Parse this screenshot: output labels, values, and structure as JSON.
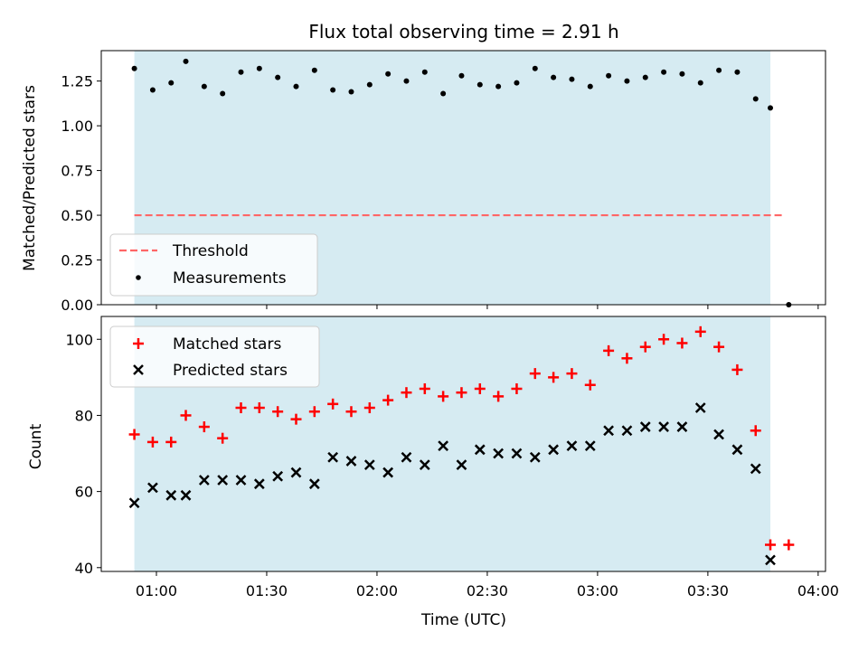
{
  "colors": {
    "shade": "#add8e6",
    "threshold": "#ff6666",
    "matched": "#ff0000",
    "predicted": "#000000",
    "measure": "#000000"
  },
  "chart_data": [
    {
      "type": "scatter",
      "title": "Flux total observing time = 2.91 h",
      "ylabel": "Matched/Predicted stars",
      "xlabel": "",
      "xlim": [
        "00:45",
        "04:02"
      ],
      "ylim": [
        0,
        1.42
      ],
      "y_ticks": [
        "0.00",
        "0.25",
        "0.50",
        "0.75",
        "1.00",
        "1.25"
      ],
      "shaded_span": [
        "00:54",
        "03:47"
      ],
      "threshold": {
        "name": "Threshold",
        "value": 0.5,
        "x_range": [
          "00:54",
          "03:51"
        ]
      },
      "legend": {
        "position": "lower-left",
        "entries": [
          "Threshold",
          "Measurements"
        ]
      },
      "series": [
        {
          "name": "Measurements",
          "marker": "dot",
          "x": [
            "00:54",
            "00:59",
            "01:04",
            "01:08",
            "01:13",
            "01:18",
            "01:23",
            "01:28",
            "01:33",
            "01:38",
            "01:43",
            "01:48",
            "01:53",
            "01:58",
            "02:03",
            "02:08",
            "02:13",
            "02:18",
            "02:23",
            "02:28",
            "02:33",
            "02:38",
            "02:43",
            "02:48",
            "02:53",
            "02:58",
            "03:03",
            "03:08",
            "03:13",
            "03:18",
            "03:23",
            "03:28",
            "03:33",
            "03:38",
            "03:43",
            "03:47",
            "03:52"
          ],
          "values": [
            1.32,
            1.2,
            1.24,
            1.36,
            1.22,
            1.18,
            1.3,
            1.32,
            1.27,
            1.22,
            1.31,
            1.2,
            1.19,
            1.23,
            1.29,
            1.25,
            1.3,
            1.18,
            1.28,
            1.23,
            1.22,
            1.24,
            1.32,
            1.27,
            1.26,
            1.22,
            1.28,
            1.25,
            1.27,
            1.3,
            1.29,
            1.24,
            1.31,
            1.3,
            1.15,
            1.1,
            0.0
          ]
        }
      ]
    },
    {
      "type": "scatter",
      "title": "",
      "ylabel": "Count",
      "xlabel": "Time (UTC)",
      "xlim": [
        "00:45",
        "04:02"
      ],
      "ylim": [
        39,
        106
      ],
      "y_ticks": [
        "40",
        "60",
        "80",
        "100"
      ],
      "x_ticks": [
        "01:00",
        "01:30",
        "02:00",
        "02:30",
        "03:00",
        "03:30",
        "04:00"
      ],
      "shaded_span": [
        "00:54",
        "03:47"
      ],
      "legend": {
        "position": "upper-left",
        "entries": [
          "Matched stars",
          "Predicted stars"
        ]
      },
      "series": [
        {
          "name": "Matched stars",
          "marker": "plus",
          "x": [
            "00:54",
            "00:59",
            "01:04",
            "01:08",
            "01:13",
            "01:18",
            "01:23",
            "01:28",
            "01:33",
            "01:38",
            "01:43",
            "01:48",
            "01:53",
            "01:58",
            "02:03",
            "02:08",
            "02:13",
            "02:18",
            "02:23",
            "02:28",
            "02:33",
            "02:38",
            "02:43",
            "02:48",
            "02:53",
            "02:58",
            "03:03",
            "03:08",
            "03:13",
            "03:18",
            "03:23",
            "03:28",
            "03:33",
            "03:38",
            "03:43",
            "03:47",
            "03:52"
          ],
          "values": [
            75,
            73,
            73,
            80,
            77,
            74,
            82,
            82,
            81,
            79,
            81,
            83,
            81,
            82,
            84,
            86,
            87,
            85,
            86,
            87,
            85,
            87,
            91,
            90,
            91,
            88,
            97,
            95,
            98,
            100,
            99,
            102,
            98,
            92,
            76,
            46,
            46
          ]
        },
        {
          "name": "Predicted stars",
          "marker": "x",
          "x": [
            "00:54",
            "00:59",
            "01:04",
            "01:08",
            "01:13",
            "01:18",
            "01:23",
            "01:28",
            "01:33",
            "01:38",
            "01:43",
            "01:48",
            "01:53",
            "01:58",
            "02:03",
            "02:08",
            "02:13",
            "02:18",
            "02:23",
            "02:28",
            "02:33",
            "02:38",
            "02:43",
            "02:48",
            "02:53",
            "02:58",
            "03:03",
            "03:08",
            "03:13",
            "03:18",
            "03:23",
            "03:28",
            "03:33",
            "03:38",
            "03:43",
            "03:47"
          ],
          "values": [
            57,
            61,
            59,
            59,
            63,
            63,
            63,
            62,
            64,
            65,
            62,
            69,
            68,
            67,
            65,
            69,
            67,
            72,
            67,
            71,
            70,
            70,
            69,
            71,
            72,
            72,
            76,
            76,
            77,
            77,
            77,
            82,
            75,
            71,
            66,
            42
          ]
        }
      ]
    }
  ]
}
